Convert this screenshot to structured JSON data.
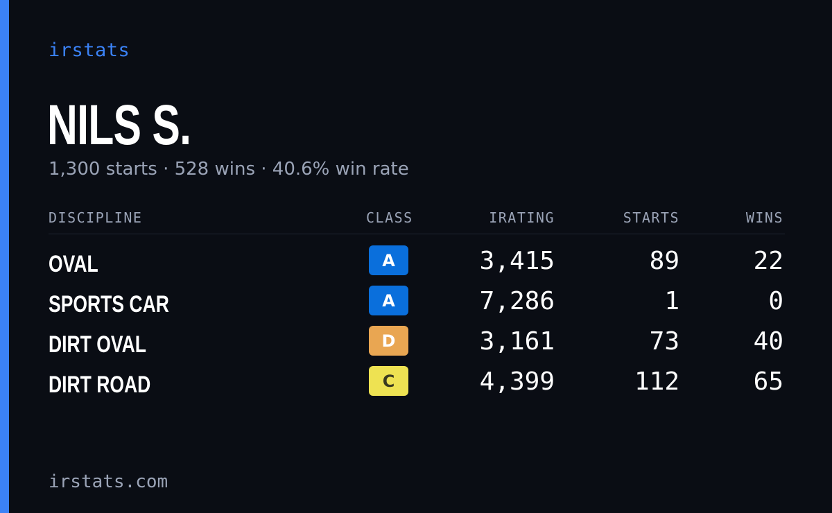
{
  "brand": "irstats",
  "player": {
    "name": "NILS S.",
    "summary": "1,300 starts · 528 wins · 40.6% win rate"
  },
  "table": {
    "headers": {
      "discipline": "DISCIPLINE",
      "class": "CLASS",
      "irating": "IRATING",
      "starts": "STARTS",
      "wins": "WINS"
    },
    "rows": [
      {
        "discipline": "OVAL",
        "class": "A",
        "class_color": "#0a6fdc",
        "class_text_color": "#ffffff",
        "irating": "3,415",
        "starts": "89",
        "wins": "22"
      },
      {
        "discipline": "SPORTS CAR",
        "class": "A",
        "class_color": "#0a6fdc",
        "class_text_color": "#ffffff",
        "irating": "7,286",
        "starts": "1",
        "wins": "0"
      },
      {
        "discipline": "DIRT OVAL",
        "class": "D",
        "class_color": "#e9a652",
        "class_text_color": "#ffffff",
        "irating": "3,161",
        "starts": "73",
        "wins": "40"
      },
      {
        "discipline": "DIRT ROAD",
        "class": "C",
        "class_color": "#eee252",
        "class_text_color": "#3a3a20",
        "irating": "4,399",
        "starts": "112",
        "wins": "65"
      }
    ]
  },
  "footer": "irstats.com",
  "colors": {
    "accent": "#3b82f6",
    "background": "#0a0d14",
    "muted": "#9aa3b6"
  }
}
